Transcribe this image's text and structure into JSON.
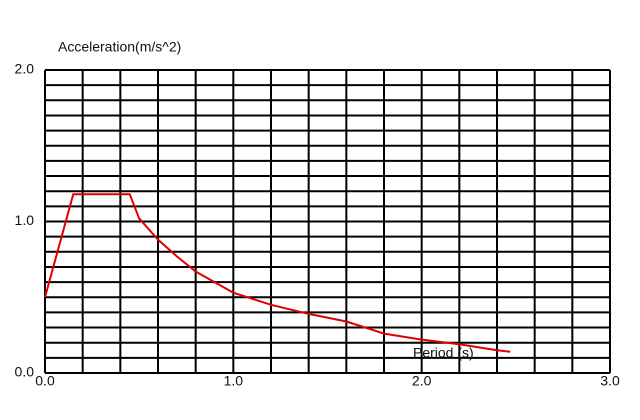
{
  "chart_data": {
    "type": "line",
    "y_label": "Acceleration(m/s^2)",
    "x_label": "Period (s)",
    "x": [
      0,
      0.15,
      0.45,
      0.5,
      0.6,
      0.7,
      0.8,
      0.9,
      1.0,
      1.2,
      1.4,
      1.6,
      1.8,
      2.0,
      2.2,
      2.4,
      2.47
    ],
    "series": [
      {
        "color": "#e00000",
        "values": [
          0.5,
          1.18,
          1.18,
          1.02,
          0.88,
          0.77,
          0.67,
          0.6,
          0.53,
          0.45,
          0.39,
          0.34,
          0.26,
          0.22,
          0.19,
          0.15,
          0.14
        ]
      }
    ],
    "xlim": [
      0,
      3
    ],
    "ylim": [
      0,
      2
    ],
    "xticks": [
      {
        "value": 0,
        "label": "0.0"
      },
      {
        "value": 1,
        "label": "1.0"
      },
      {
        "value": 2,
        "label": "2.0"
      },
      {
        "value": 3,
        "label": "3.0"
      }
    ],
    "yticks": [
      {
        "value": 0,
        "label": "0.0"
      },
      {
        "value": 1,
        "label": "1.0"
      },
      {
        "value": 2,
        "label": "2.0"
      }
    ],
    "xgrid": [
      0.2,
      0.4,
      0.6,
      0.8,
      1.2,
      1.4,
      1.6,
      1.8,
      2.2,
      2.4,
      2.6,
      2.8
    ],
    "ygrid": [
      0.1,
      0.2,
      0.3,
      0.4,
      0.5,
      0.6,
      0.7,
      0.8,
      0.9,
      1.1,
      1.2,
      1.3,
      1.4,
      1.5,
      1.6,
      1.7,
      1.8,
      1.9
    ],
    "grid": true
  }
}
